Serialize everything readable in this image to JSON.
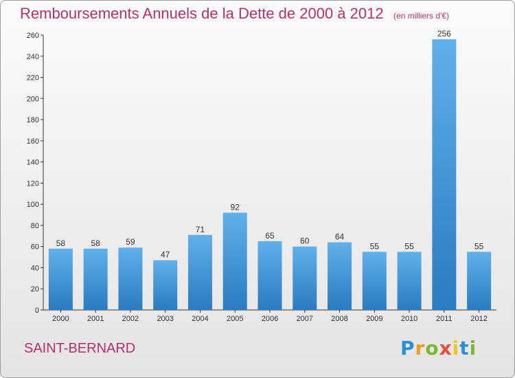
{
  "chart_data": {
    "type": "bar",
    "title": "Remboursements Annuels de la Dette de 2000 à 2012",
    "subtitle": "(en milliers d'€)",
    "categories": [
      "2000",
      "2001",
      "2002",
      "2003",
      "2004",
      "2005",
      "2006",
      "2007",
      "2008",
      "2009",
      "2010",
      "2011",
      "2012"
    ],
    "values": [
      58,
      58,
      59,
      47,
      71,
      92,
      65,
      60,
      64,
      55,
      55,
      256,
      55
    ],
    "ylim": [
      0,
      260
    ],
    "yticks": [
      0,
      20,
      40,
      60,
      80,
      100,
      120,
      140,
      160,
      180,
      200,
      220,
      240,
      260
    ],
    "grid": false,
    "bar_color": "#3d97dc",
    "bar_color_dark": "#2a7bc0"
  },
  "commune": "SAINT-BERNARD",
  "logo": {
    "letters": [
      "P",
      "r",
      "o",
      "x",
      "i",
      "t",
      "i"
    ],
    "colors": [
      "#2b8fd6",
      "#f29a1d",
      "#7cb82f",
      "#e94e3c",
      "#f2c51d",
      "#2b8fd6",
      "#7cb82f"
    ]
  },
  "colors": {
    "title": "#b5306a",
    "axis": "#333333"
  }
}
